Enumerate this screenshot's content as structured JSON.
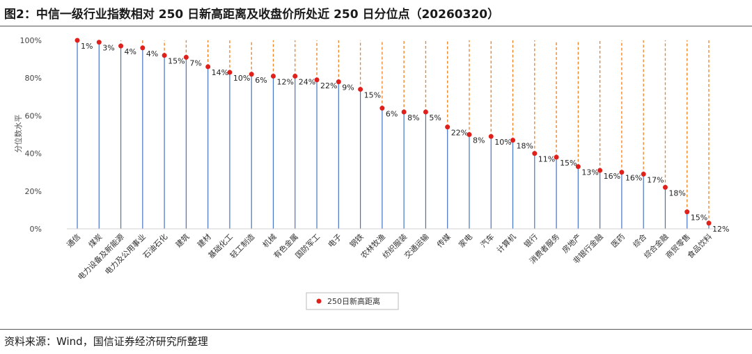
{
  "header": {
    "title": "图2：中信一级行业指数相对 250 日新高距离及收盘价所处近 250 日分位点（20260320）"
  },
  "footer": {
    "source": "资料来源：Wind，国信证券经济研究所整理"
  },
  "chart_data": {
    "type": "scatter",
    "ylabel": "分位数水平",
    "ylim": [
      0,
      100
    ],
    "yticks": [
      "0%",
      "20%",
      "40%",
      "60%",
      "80%",
      "100%"
    ],
    "grid": false,
    "legend": {
      "position": "bottom",
      "entries": [
        "250日新高距离"
      ]
    },
    "colors": {
      "marker": "#e0201b",
      "percentile_line": "#4472c4",
      "distance_line": "#f07f1f"
    },
    "categories": [
      "通信",
      "煤炭",
      "电力设备及新能源",
      "电力及公用事业",
      "石油石化",
      "建筑",
      "建材",
      "基础化工",
      "轻工制造",
      "机械",
      "有色金属",
      "国防军工",
      "电子",
      "钢铁",
      "农林牧渔",
      "纺织服装",
      "交通运输",
      "传媒",
      "家电",
      "汽车",
      "计算机",
      "银行",
      "消费者服务",
      "房地产",
      "非银行金融",
      "医药",
      "综合",
      "综合金融",
      "商贸零售",
      "食品饮料"
    ],
    "series": [
      {
        "name": "250日新高距离",
        "values": [
          100,
          99,
          97,
          96,
          92,
          91,
          86,
          83,
          82,
          81,
          81,
          79,
          78,
          74,
          64,
          62,
          62,
          54,
          50,
          49,
          47,
          40,
          38,
          33,
          31,
          30,
          29,
          22,
          9,
          3
        ],
        "labels": [
          "1%",
          "3%",
          "4%",
          "4%",
          "15%",
          "7%",
          "14%",
          "10%",
          "6%",
          "12%",
          "24%",
          "22%",
          "9%",
          "15%",
          "6%",
          "8%",
          "5%",
          "22%",
          "8%",
          "10%",
          "18%",
          "11%",
          "15%",
          "13%",
          "16%",
          "16%",
          "17%",
          "18%",
          "15%",
          "12%"
        ]
      }
    ]
  }
}
